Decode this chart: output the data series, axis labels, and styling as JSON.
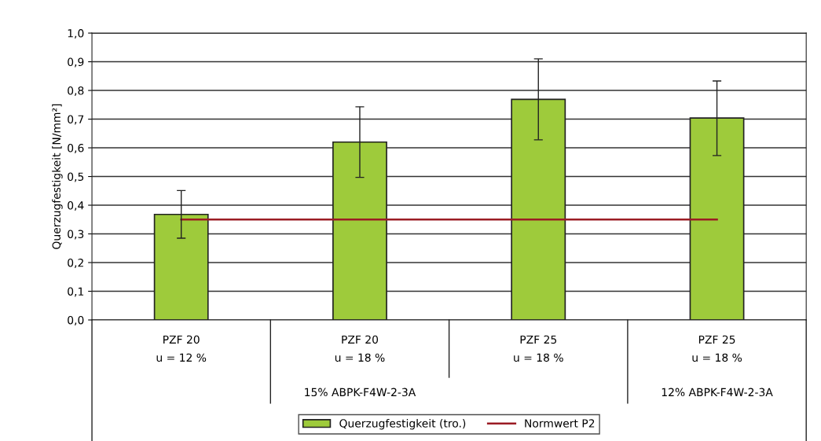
{
  "chart_data": {
    "type": "bar",
    "ylabel": "Querzugfestigkeit [N/mm²]",
    "categories": [
      "PZF 20\nu = 12 %",
      "PZF 20\nu = 18 %",
      "PZF 25\nu = 18 %",
      "PZF 25\nu = 18 %"
    ],
    "series": [
      {
        "name": "Querzugfestigkeit (tro.)",
        "color": "#9ecb3b",
        "values": [
          0.368,
          0.62,
          0.769,
          0.704
        ],
        "errors": [
          [
            0.285,
            0.451
          ],
          [
            0.497,
            0.743
          ],
          [
            0.628,
            0.91
          ],
          [
            0.573,
            0.833
          ]
        ]
      },
      {
        "name": "Normwert P2",
        "type": "line",
        "color": "#9b1c24",
        "values": [
          0.35,
          0.35,
          0.35,
          0.35
        ]
      }
    ],
    "annotations": [
      "15% ABPK-F4W-2-3A",
      "12% ABPK-F4W-2-3A"
    ],
    "ylim": [
      0,
      1.0
    ],
    "yticks": [
      {
        "value": 0,
        "label": "0,0"
      },
      {
        "value": 0.1,
        "label": "0,1"
      },
      {
        "value": 0.2,
        "label": "0,2"
      },
      {
        "value": 0.3,
        "label": "0,3"
      },
      {
        "value": 0.4,
        "label": "0,4"
      },
      {
        "value": 0.5,
        "label": "0,5"
      },
      {
        "value": 0.6,
        "label": "0,6"
      },
      {
        "value": 0.7,
        "label": "0,7"
      },
      {
        "value": 0.8,
        "label": "0,8"
      },
      {
        "value": 0.9,
        "label": "0,9"
      },
      {
        "value": 1.0,
        "label": "1,0"
      }
    ],
    "grid": "y",
    "legend": "bottom"
  }
}
